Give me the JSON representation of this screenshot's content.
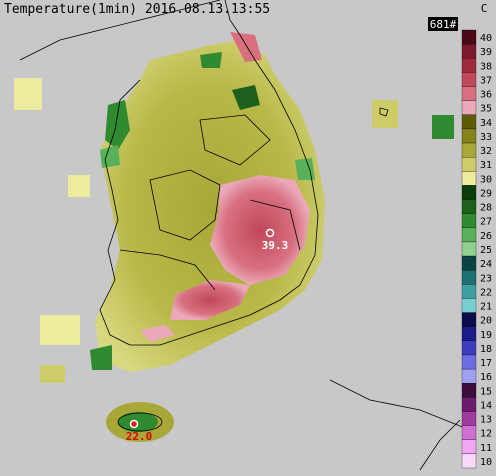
{
  "header": {
    "title": "Temperature(1min) 2016.08.13.13:55",
    "count": "681#"
  },
  "legend": {
    "unit": "C",
    "labels": [
      40,
      39,
      38,
      37,
      36,
      35,
      34,
      33,
      32,
      31,
      30,
      29,
      28,
      27,
      26,
      25,
      24,
      23,
      22,
      21,
      20,
      19,
      18,
      17,
      16,
      15,
      14,
      13,
      12,
      11,
      10
    ],
    "colors": [
      "#4a0a18",
      "#7a1a2c",
      "#a02a3c",
      "#c04858",
      "#d87080",
      "#eaa8b8",
      "#5c5c08",
      "#848418",
      "#a8a838",
      "#cccc68",
      "#ecec9c",
      "#0c3c0c",
      "#1c601c",
      "#308a30",
      "#58b058",
      "#90d090",
      "#0c4444",
      "#1c7070",
      "#3ca0a0",
      "#78d0d0",
      "#0c0c4c",
      "#1c1c88",
      "#3c3cc0",
      "#6c6ce0",
      "#a0a0f0",
      "#3c0c3c",
      "#6c1c6c",
      "#a03ca0",
      "#d070d0",
      "#f0a8f0",
      "#f8d8f8"
    ]
  },
  "points": [
    {
      "label": "39.3"
    },
    {
      "label": "22.0"
    }
  ]
}
